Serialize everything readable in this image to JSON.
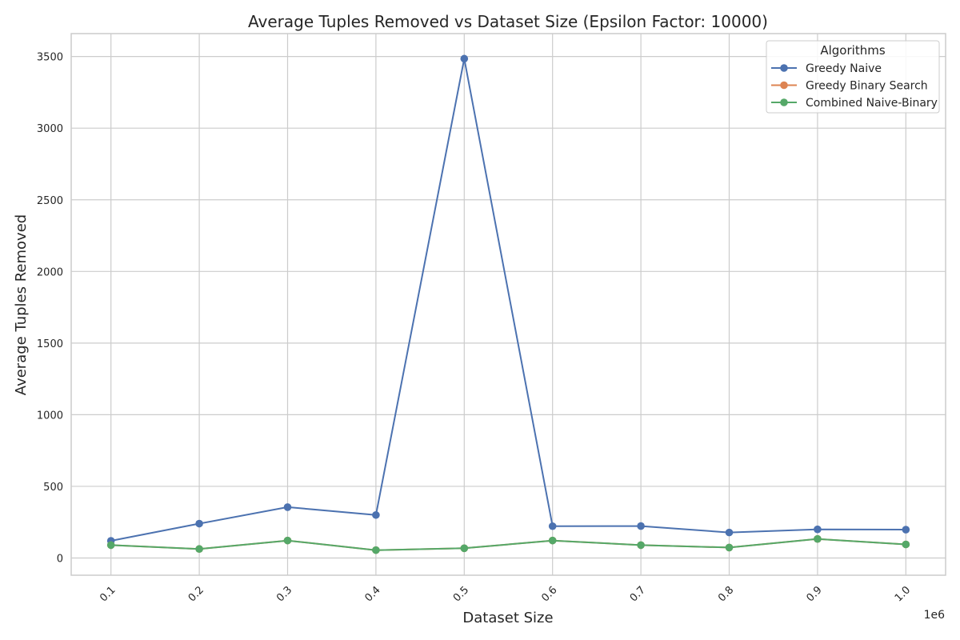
{
  "chart_data": {
    "type": "line",
    "title": "Average Tuples Removed vs Dataset Size (Epsilon Factor: 10000)",
    "xlabel": "Dataset Size",
    "ylabel": "Average Tuples Removed",
    "x_offset_text": "1e6",
    "x": [
      0.1,
      0.2,
      0.3,
      0.4,
      0.5,
      0.6,
      0.7,
      0.8,
      0.9,
      1.0
    ],
    "x_tick_labels": [
      "0.1",
      "0.2",
      "0.3",
      "0.4",
      "0.5",
      "0.6",
      "0.7",
      "0.8",
      "0.9",
      "1.0"
    ],
    "y_ticks": [
      0,
      500,
      1000,
      1500,
      2000,
      2500,
      3000,
      3500
    ],
    "y_tick_labels": [
      "0",
      "500",
      "1000",
      "1500",
      "2000",
      "2500",
      "3000",
      "3500"
    ],
    "xlim": [
      0.055,
      1.045
    ],
    "ylim": [
      -120,
      3660
    ],
    "grid": true,
    "legend": {
      "title": "Algorithms",
      "placement": "top-right"
    },
    "series": [
      {
        "name": "Greedy Naive",
        "color": "#4c72b0",
        "values": [
          120,
          240,
          355,
          300,
          3485,
          222,
          223,
          178,
          200,
          198
        ]
      },
      {
        "name": "Greedy Binary Search",
        "color": "#dd8452",
        "values": [
          90,
          63,
          122,
          55,
          68,
          122,
          90,
          73,
          133,
          95
        ]
      },
      {
        "name": "Combined Naive-Binary",
        "color": "#55a868",
        "values": [
          90,
          63,
          122,
          55,
          68,
          122,
          90,
          73,
          133,
          95
        ]
      }
    ]
  }
}
